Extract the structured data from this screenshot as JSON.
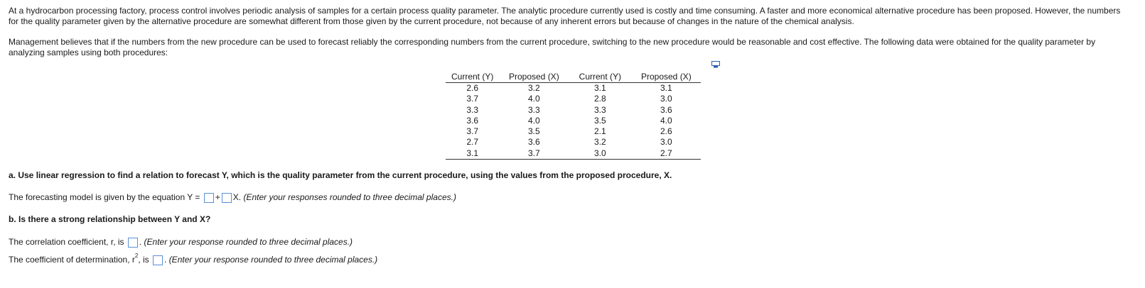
{
  "intro": {
    "paragraph1": "At a hydrocarbon processing factory, process control involves periodic analysis of samples for a certain process quality parameter. The analytic procedure currently used is costly and time consuming. A faster and more economical alternative procedure has been proposed. However, the numbers for the quality parameter given by the alternative procedure are somewhat different from those given by the current procedure, not because of any inherent errors but because of changes in the nature of the chemical analysis.",
    "paragraph2": "Management believes that if the numbers from the new procedure can be used to forecast reliably the corresponding numbers from the current procedure, switching to the new procedure would be reasonable and cost effective. The following data were obtained for the quality parameter by analyzing samples using both procedures:"
  },
  "table": {
    "headers": [
      "Current (Y)",
      "Proposed (X)",
      "Current (Y)",
      "Proposed (X)"
    ],
    "rows": [
      [
        "2.6",
        "3.2",
        "3.1",
        "3.1"
      ],
      [
        "3.7",
        "4.0",
        "2.8",
        "3.0"
      ],
      [
        "3.3",
        "3.3",
        "3.3",
        "3.6"
      ],
      [
        "3.6",
        "4.0",
        "3.5",
        "4.0"
      ],
      [
        "3.7",
        "3.5",
        "2.1",
        "2.6"
      ],
      [
        "2.7",
        "3.6",
        "3.2",
        "3.0"
      ],
      [
        "3.1",
        "3.7",
        "3.0",
        "2.7"
      ]
    ]
  },
  "part_a": {
    "question": "a. Use linear regression to find a relation to forecast Y, which is the quality parameter from the current procedure, using the values from the proposed procedure, X.",
    "equation_prefix": "The forecasting model is given by the equation Y =",
    "plus": "+",
    "x_suffix": "X.",
    "hint": "(Enter your responses rounded to three decimal places.)"
  },
  "part_b": {
    "question": "b. Is there a strong relationship between Y and X?",
    "r_prefix": "The correlation coefficient, r, is",
    "r_hint": "(Enter your response rounded to three decimal places.)",
    "r2_prefix": "The coefficient of determination, r",
    "r2_sup": "2",
    "r2_is": ", is",
    "r2_hint": "(Enter your response rounded to three decimal places.)"
  }
}
